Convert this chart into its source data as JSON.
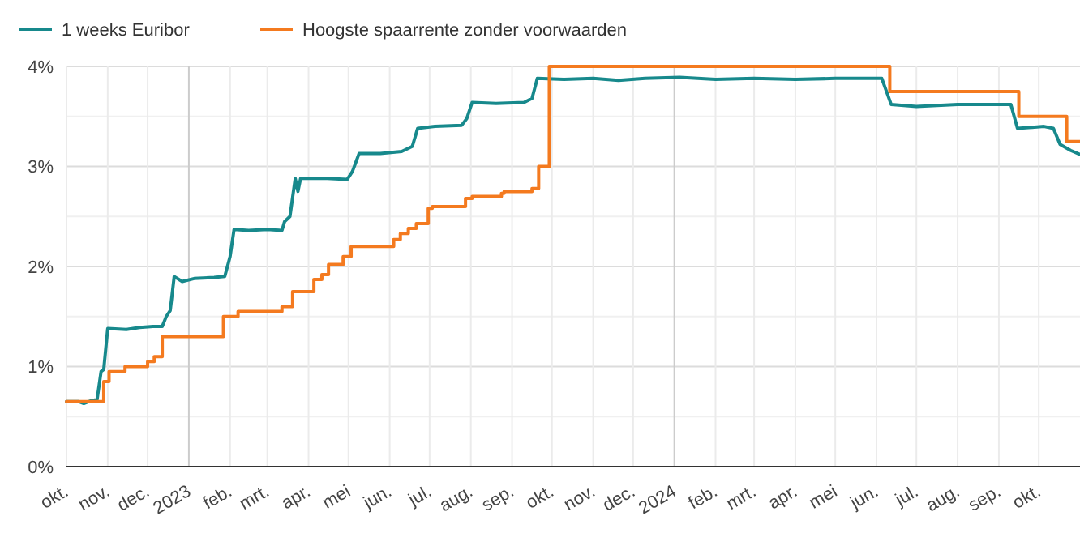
{
  "chart_data": {
    "type": "line",
    "legend": "top left",
    "grid": true,
    "xlim": [
      "2022-10-01",
      "2024-11-01"
    ],
    "xticks": [
      {
        "value": "2022-10-01",
        "label": "okt."
      },
      {
        "value": "2022-11-01",
        "label": "nov."
      },
      {
        "value": "2022-12-01",
        "label": "dec."
      },
      {
        "value": "2023-01-01",
        "label": "2023"
      },
      {
        "value": "2023-02-01",
        "label": "feb."
      },
      {
        "value": "2023-03-01",
        "label": "mrt."
      },
      {
        "value": "2023-04-01",
        "label": "apr."
      },
      {
        "value": "2023-05-01",
        "label": "mei"
      },
      {
        "value": "2023-06-01",
        "label": "jun."
      },
      {
        "value": "2023-07-01",
        "label": "jul."
      },
      {
        "value": "2023-08-01",
        "label": "aug."
      },
      {
        "value": "2023-09-01",
        "label": "sep."
      },
      {
        "value": "2023-10-01",
        "label": "okt."
      },
      {
        "value": "2023-11-01",
        "label": "nov."
      },
      {
        "value": "2023-12-01",
        "label": "dec."
      },
      {
        "value": "2024-01-01",
        "label": "2024"
      },
      {
        "value": "2024-02-01",
        "label": "feb."
      },
      {
        "value": "2024-03-01",
        "label": "mrt."
      },
      {
        "value": "2024-04-01",
        "label": "apr."
      },
      {
        "value": "2024-05-01",
        "label": "mei"
      },
      {
        "value": "2024-06-01",
        "label": "jun."
      },
      {
        "value": "2024-07-01",
        "label": "jul."
      },
      {
        "value": "2024-08-01",
        "label": "aug."
      },
      {
        "value": "2024-09-01",
        "label": "sep."
      },
      {
        "value": "2024-10-01",
        "label": "okt."
      }
    ],
    "ylim": [
      0,
      4
    ],
    "yticks": [
      {
        "value": 0,
        "label": "0%"
      },
      {
        "value": 0.5,
        "label": null
      },
      {
        "value": 1,
        "label": "1%"
      },
      {
        "value": 1.5,
        "label": null
      },
      {
        "value": 2,
        "label": "2%"
      },
      {
        "value": 2.5,
        "label": null
      },
      {
        "value": 3,
        "label": "3%"
      },
      {
        "value": 3.5,
        "label": null
      },
      {
        "value": 4,
        "label": "4%"
      }
    ],
    "series": [
      {
        "name": "1 weeks Euribor",
        "color": "#17898c",
        "x": [
          "2022-10-01",
          "2022-10-10",
          "2022-10-14",
          "2022-10-20",
          "2022-10-24",
          "2022-10-27",
          "2022-10-29",
          "2022-11-01",
          "2022-11-15",
          "2022-11-25",
          "2022-12-05",
          "2022-12-12",
          "2022-12-15",
          "2022-12-18",
          "2022-12-21",
          "2022-12-27",
          "2023-01-05",
          "2023-01-20",
          "2023-01-28",
          "2023-02-01",
          "2023-02-04",
          "2023-02-15",
          "2023-03-01",
          "2023-03-12",
          "2023-03-14",
          "2023-03-18",
          "2023-03-22",
          "2023-03-24",
          "2023-03-26",
          "2023-04-15",
          "2023-04-30",
          "2023-05-04",
          "2023-05-09",
          "2023-05-25",
          "2023-06-10",
          "2023-06-18",
          "2023-06-22",
          "2023-07-05",
          "2023-07-25",
          "2023-07-29",
          "2023-08-02",
          "2023-08-20",
          "2023-09-10",
          "2023-09-16",
          "2023-09-20",
          "2023-10-10",
          "2023-11-01",
          "2023-11-20",
          "2023-12-10",
          "2024-01-05",
          "2024-02-01",
          "2024-03-01",
          "2024-04-01",
          "2024-05-01",
          "2024-06-05",
          "2024-06-12",
          "2024-07-01",
          "2024-08-01",
          "2024-09-10",
          "2024-09-15",
          "2024-10-05",
          "2024-10-12",
          "2024-10-17",
          "2024-10-25",
          "2024-11-01"
        ],
        "values": [
          0.65,
          0.65,
          0.63,
          0.66,
          0.67,
          0.95,
          0.97,
          1.38,
          1.37,
          1.39,
          1.4,
          1.4,
          1.5,
          1.56,
          1.9,
          1.85,
          1.88,
          1.89,
          1.9,
          2.1,
          2.37,
          2.36,
          2.37,
          2.36,
          2.45,
          2.5,
          2.88,
          2.75,
          2.88,
          2.88,
          2.87,
          2.95,
          3.13,
          3.13,
          3.15,
          3.2,
          3.38,
          3.4,
          3.41,
          3.48,
          3.64,
          3.63,
          3.64,
          3.68,
          3.88,
          3.87,
          3.88,
          3.86,
          3.88,
          3.89,
          3.87,
          3.88,
          3.87,
          3.88,
          3.88,
          3.62,
          3.6,
          3.62,
          3.62,
          3.38,
          3.4,
          3.38,
          3.22,
          3.16,
          3.12
        ]
      },
      {
        "name": "Hoogste spaarrente zonder voorwaarden",
        "color": "#f47a1f",
        "type": "step",
        "x": [
          "2022-10-01",
          "2022-10-29",
          "2022-11-02",
          "2022-11-14",
          "2022-12-01",
          "2022-12-06",
          "2022-12-12",
          "2023-01-27",
          "2023-02-07",
          "2023-03-12",
          "2023-03-20",
          "2023-04-05",
          "2023-04-11",
          "2023-04-16",
          "2023-04-27",
          "2023-05-03",
          "2023-06-04",
          "2023-06-09",
          "2023-06-15",
          "2023-06-21",
          "2023-06-30",
          "2023-07-03",
          "2023-07-28",
          "2023-08-02",
          "2023-08-24",
          "2023-08-26",
          "2023-09-16",
          "2023-09-21",
          "2023-09-29",
          "2024-06-11",
          "2024-09-16",
          "2024-10-22",
          "2024-11-01"
        ],
        "values": [
          0.65,
          0.85,
          0.95,
          1.0,
          1.05,
          1.1,
          1.3,
          1.5,
          1.55,
          1.6,
          1.75,
          1.87,
          1.92,
          2.02,
          2.1,
          2.2,
          2.27,
          2.33,
          2.38,
          2.43,
          2.58,
          2.6,
          2.68,
          2.7,
          2.73,
          2.75,
          2.78,
          3.0,
          4.0,
          3.75,
          3.5,
          3.25,
          3.25
        ]
      }
    ]
  }
}
